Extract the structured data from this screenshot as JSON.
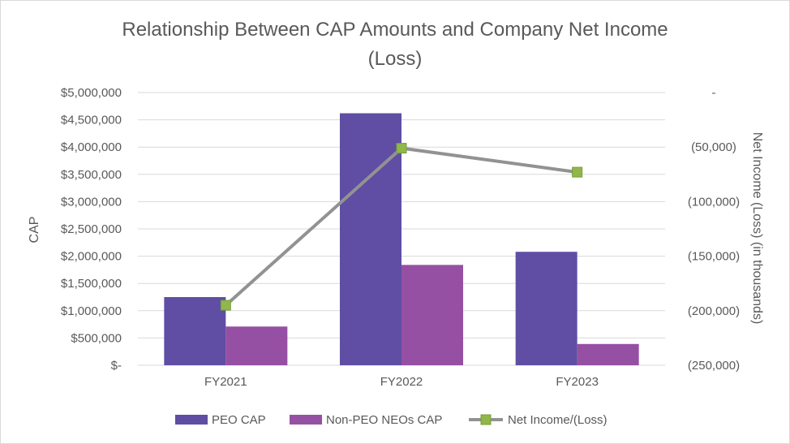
{
  "chart_data": {
    "type": "bar",
    "title_line1": "Relationship Between CAP Amounts and Company Net Income",
    "title_line2": "(Loss)",
    "categories": [
      "FY2021",
      "FY2022",
      "FY2023"
    ],
    "series": [
      {
        "name": "PEO CAP",
        "axis": "left",
        "color": "#5f4ea3",
        "values": [
          1250000,
          4620000,
          2080000
        ]
      },
      {
        "name": "Non-PEO NEOs CAP",
        "axis": "left",
        "color": "#9650a3",
        "values": [
          710000,
          1840000,
          390000
        ]
      },
      {
        "name": "Net Income/(Loss)",
        "type": "line",
        "axis": "right",
        "color": "#929292",
        "marker_color": "#8fb74a",
        "values": [
          -195000,
          -51000,
          -73000
        ]
      }
    ],
    "ylabel": "CAP",
    "ylim": [
      0,
      5000000
    ],
    "y_ticks": [
      "$-",
      "$500,000",
      "$1,000,000",
      "$1,500,000",
      "$2,000,000",
      "$2,500,000",
      "$3,000,000",
      "$3,500,000",
      "$4,000,000",
      "$4,500,000",
      "$5,000,000"
    ],
    "y2label": "Net Income (Loss) (in thousands)",
    "y2lim": [
      -250000,
      0
    ],
    "y2_ticks": [
      "(250,000)",
      "(200,000)",
      "(150,000)",
      "(100,000)",
      "(50,000)",
      "-"
    ],
    "legend": [
      "PEO CAP",
      "Non-PEO NEOs CAP",
      "Net Income/(Loss)"
    ],
    "legend_position": "bottom",
    "grid": true
  }
}
